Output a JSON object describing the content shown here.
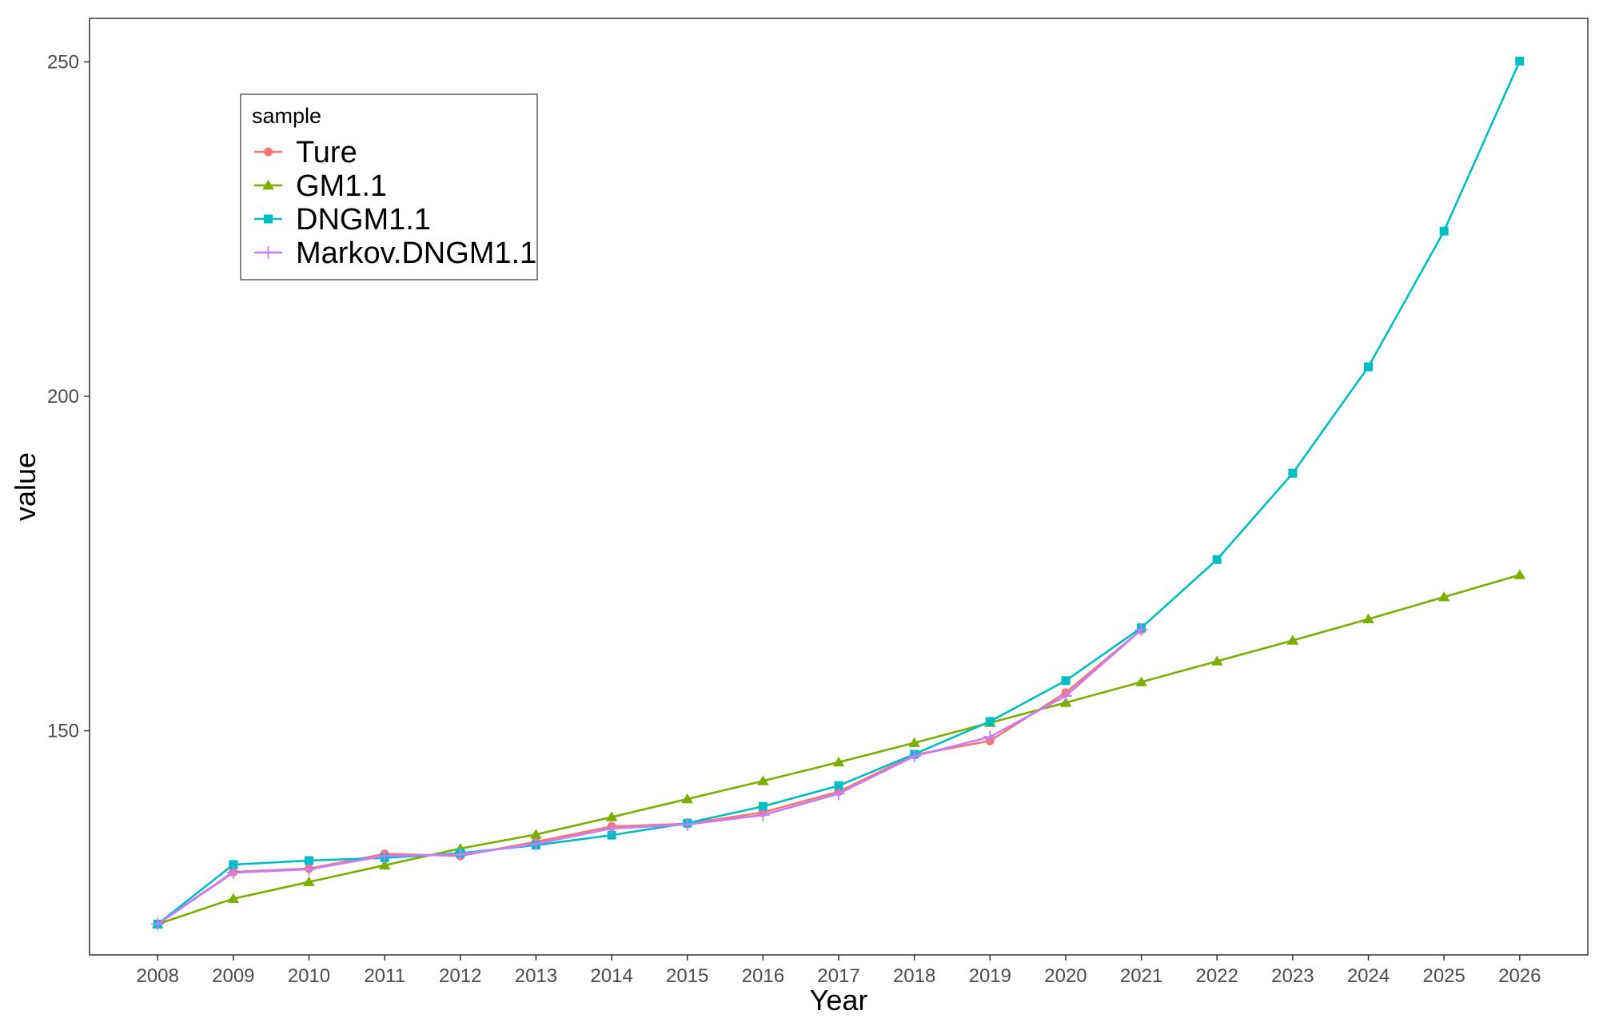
{
  "chart_data": {
    "type": "line",
    "xlabel": "Year",
    "ylabel": "value",
    "x": [
      2008,
      2009,
      2010,
      2011,
      2012,
      2013,
      2014,
      2015,
      2016,
      2017,
      2018,
      2019,
      2020,
      2021,
      2022,
      2023,
      2024,
      2025,
      2026
    ],
    "x_tick_labels": [
      "2008",
      "2009",
      "2010",
      "2011",
      "2012",
      "2013",
      "2014",
      "2015",
      "2016",
      "2017",
      "2018",
      "2019",
      "2020",
      "2021",
      "2022",
      "2023",
      "2024",
      "2025",
      "2026"
    ],
    "y_ticks": [
      150,
      200,
      250
    ],
    "y_tick_labels": [
      "150",
      "200",
      "250"
    ],
    "xlim": [
      2007.1,
      2026.9
    ],
    "ylim": [
      116.5,
      256.5
    ],
    "grid": false,
    "legend": {
      "title": "sample",
      "position": "top-left"
    },
    "series": [
      {
        "name": "Ture",
        "color": "#F8766D",
        "marker": "circle",
        "values": [
          121.1,
          128.9,
          129.4,
          131.6,
          131.3,
          133.4,
          135.7,
          136.1,
          137.8,
          140.9,
          146.4,
          148.5,
          155.7,
          165.1,
          null,
          null,
          null,
          null,
          null
        ]
      },
      {
        "name": "GM1.1",
        "color": "#7CAE00",
        "marker": "triangle",
        "values": [
          121.1,
          124.9,
          127.4,
          129.9,
          132.4,
          134.5,
          137.1,
          139.8,
          142.5,
          145.3,
          148.2,
          151.2,
          154.2,
          157.3,
          160.4,
          163.5,
          166.7,
          170.0,
          173.3
        ]
      },
      {
        "name": "DNGM1.1",
        "color": "#00BFC4",
        "marker": "square",
        "values": [
          121.1,
          130.0,
          130.6,
          131.0,
          131.7,
          132.9,
          134.4,
          136.2,
          138.7,
          141.8,
          146.5,
          151.4,
          157.5,
          165.4,
          175.6,
          188.5,
          204.4,
          224.7,
          250.1
        ]
      },
      {
        "name": "Markov.DNGM1.1",
        "color": "#C77CFF",
        "marker": "plus",
        "values": [
          121.1,
          128.8,
          129.3,
          131.3,
          131.5,
          133.1,
          135.4,
          136.0,
          137.4,
          140.6,
          146.2,
          149.1,
          155.2,
          165.1,
          null,
          null,
          null,
          null,
          null
        ]
      }
    ]
  }
}
